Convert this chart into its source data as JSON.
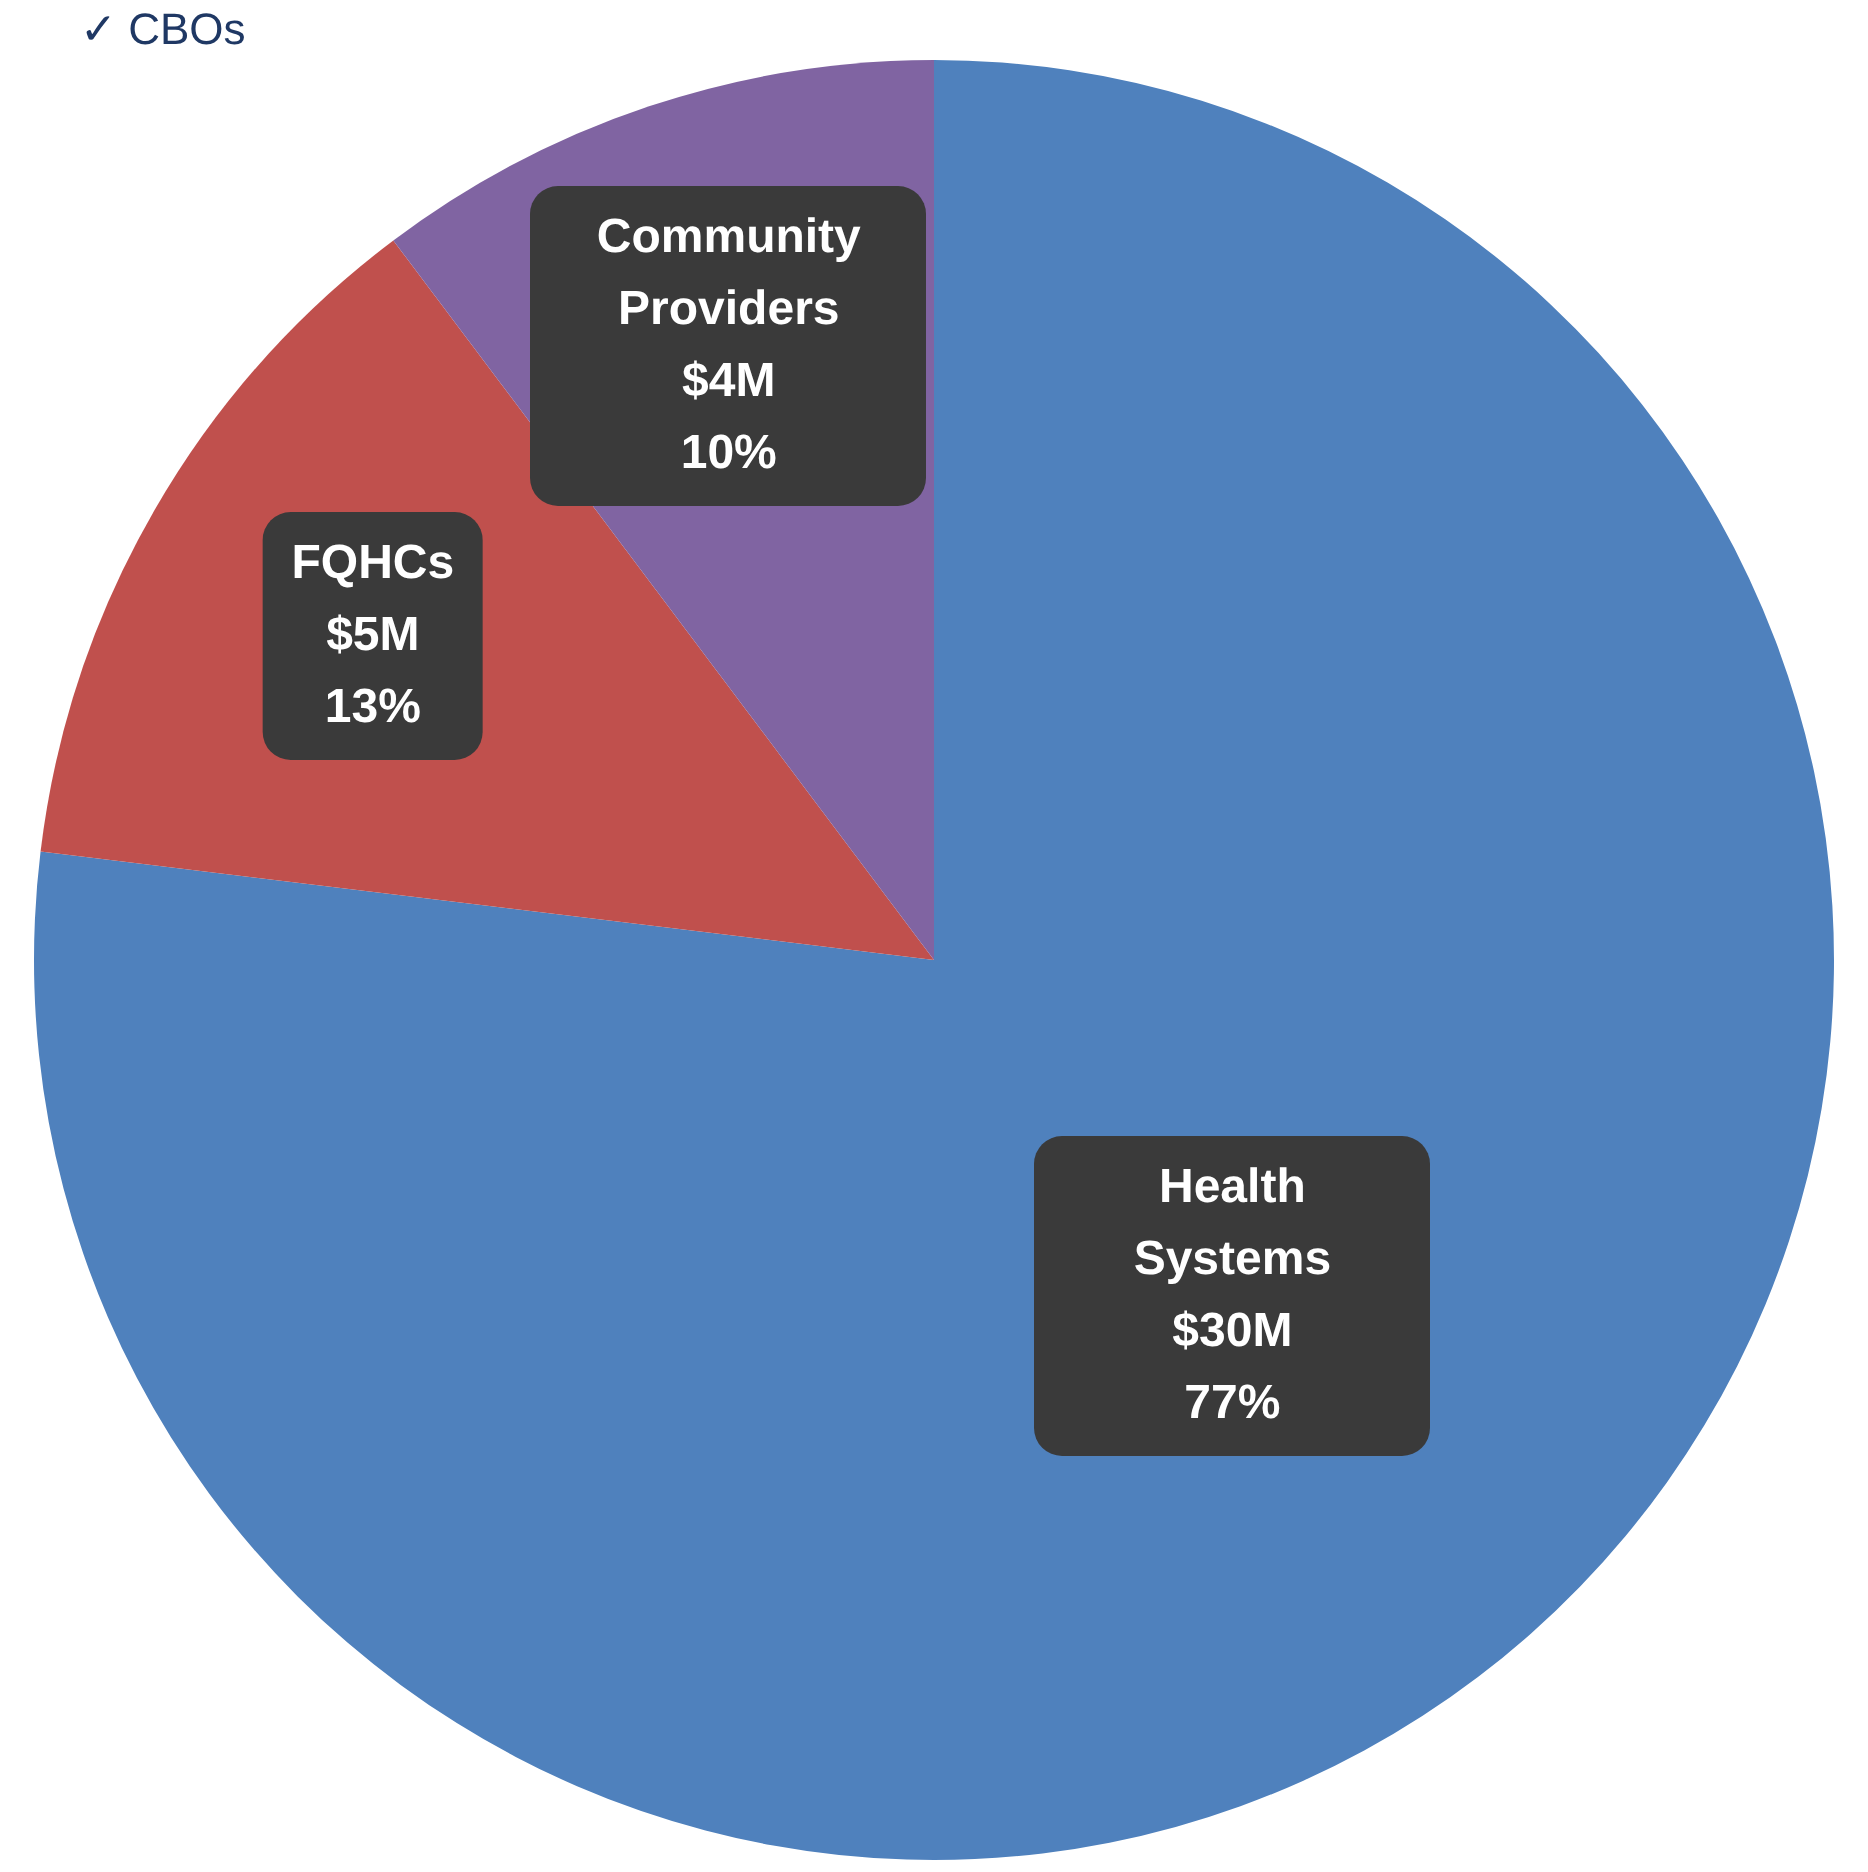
{
  "chart_data": {
    "type": "pie",
    "categories": [
      "Health Systems",
      "FQHCs",
      "Community Providers"
    ],
    "values": [
      30,
      5,
      4
    ],
    "value_labels": [
      "$30M",
      "$5M",
      "$4M"
    ],
    "colors": [
      "#4f81bd",
      "#c0504d",
      "#8064a2"
    ],
    "annotations": [
      "✓ CBOs",
      {
        "text": "77%",
        "x": "Health Systems"
      },
      {
        "text": "13%",
        "x": "FQHCs"
      },
      {
        "text": "10%",
        "x": "Community Providers"
      }
    ],
    "legend": false
  }
}
